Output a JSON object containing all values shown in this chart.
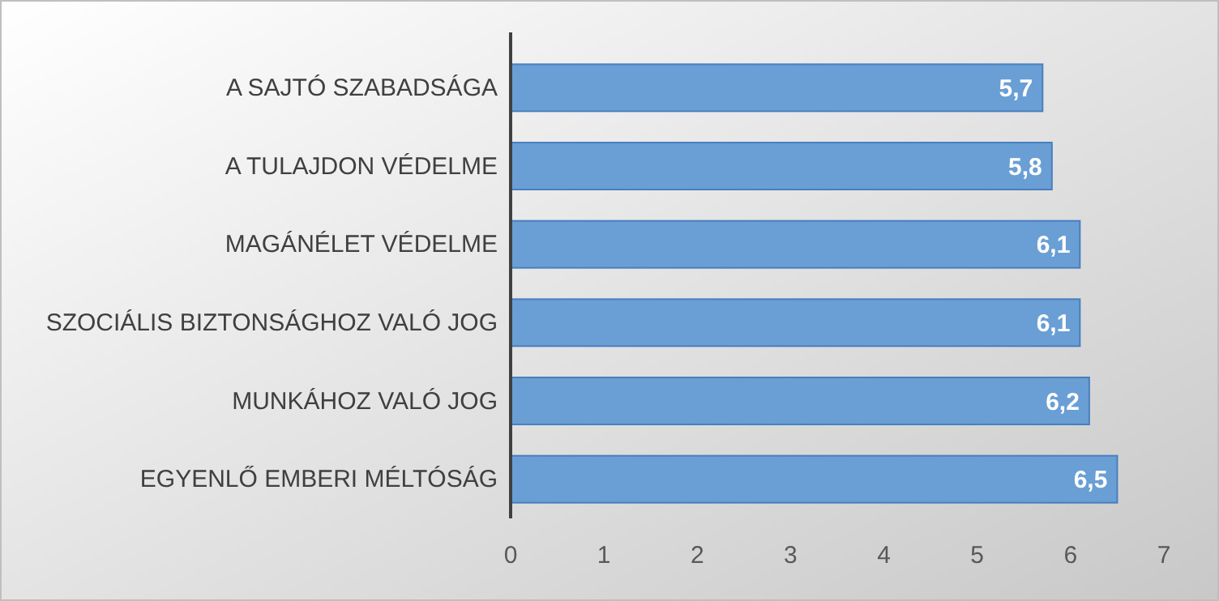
{
  "chart_data": {
    "type": "bar",
    "orientation": "horizontal",
    "categories": [
      "A SAJTÓ SZABADSÁGA",
      "A TULAJDON VÉDELME",
      "MAGÁNÉLET VÉDELME",
      "SZOCIÁLIS BIZTONSÁGHOZ VALÓ JOG",
      "MUNKÁHOZ VALÓ JOG",
      "EGYENLŐ EMBERI MÉLTÓSÁG"
    ],
    "values": [
      5.7,
      5.8,
      6.1,
      6.1,
      6.2,
      6.5
    ],
    "color": "#6a9fd6",
    "xlim": [
      0,
      7
    ],
    "xticks": [
      0,
      1,
      2,
      3,
      4,
      5,
      6,
      7
    ],
    "value_labels": [
      "5,7",
      "5,8",
      "6,1",
      "6,1",
      "6,2",
      "6,5"
    ],
    "grid": false
  }
}
